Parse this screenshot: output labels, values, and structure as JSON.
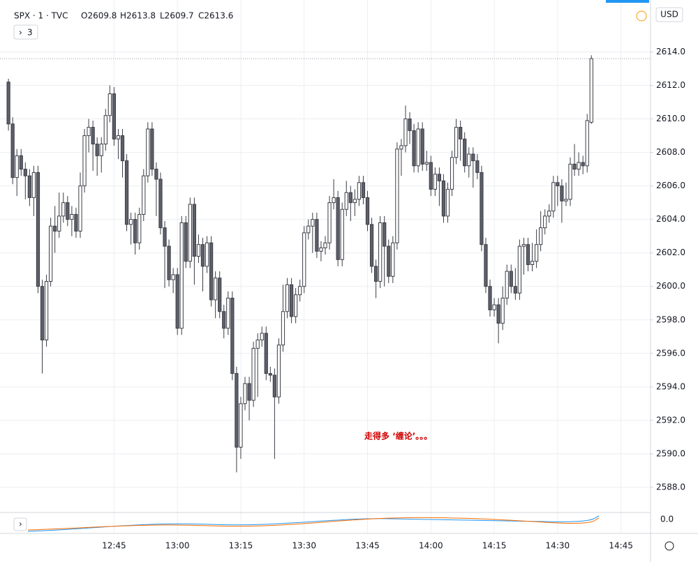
{
  "chart_data": {
    "type": "candlestick",
    "header": {
      "symbol": "SPX · 1 · TVC",
      "open": "O2609.8",
      "high": "H2613.8",
      "low": "L2609.7",
      "close": "C2613.6"
    },
    "indicator_count": "3",
    "currency": "USD",
    "annotation": "走得多 ‘缠论’。。。",
    "indicator_zero": "0.0",
    "x": [
      "12:20",
      "12:21",
      "12:22",
      "12:23",
      "12:24",
      "12:25",
      "12:26",
      "12:27",
      "12:28",
      "12:29",
      "12:30",
      "12:31",
      "12:32",
      "12:33",
      "12:34",
      "12:35",
      "12:36",
      "12:37",
      "12:38",
      "12:39",
      "12:40",
      "12:41",
      "12:42",
      "12:43",
      "12:44",
      "12:45",
      "12:46",
      "12:47",
      "12:48",
      "12:49",
      "12:50",
      "12:51",
      "12:52",
      "12:53",
      "12:54",
      "12:55",
      "12:56",
      "12:57",
      "12:58",
      "12:59",
      "13:00",
      "13:01",
      "13:02",
      "13:03",
      "13:04",
      "13:05",
      "13:06",
      "13:07",
      "13:08",
      "13:09",
      "13:10",
      "13:11",
      "13:12",
      "13:13",
      "13:14",
      "13:15",
      "13:16",
      "13:17",
      "13:18",
      "13:19",
      "13:20",
      "13:21",
      "13:22",
      "13:23",
      "13:24",
      "13:25",
      "13:26",
      "13:27",
      "13:28",
      "13:29",
      "13:30",
      "13:31",
      "13:32",
      "13:33",
      "13:34",
      "13:35",
      "13:36",
      "13:37",
      "13:38",
      "13:39",
      "13:40",
      "13:41",
      "13:42",
      "13:43",
      "13:44",
      "13:45",
      "13:46",
      "13:47",
      "13:48",
      "13:49",
      "13:50",
      "13:51",
      "13:52",
      "13:53",
      "13:54",
      "13:55",
      "13:56",
      "13:57",
      "13:58",
      "13:59",
      "14:00",
      "14:01",
      "14:02",
      "14:03",
      "14:04",
      "14:05",
      "14:06",
      "14:07",
      "14:08",
      "14:09",
      "14:10",
      "14:11",
      "14:12",
      "14:13",
      "14:14",
      "14:15",
      "14:16",
      "14:17",
      "14:18",
      "14:19",
      "14:20",
      "14:21",
      "14:22",
      "14:23",
      "14:24",
      "14:25",
      "14:26",
      "14:27",
      "14:28",
      "14:29",
      "14:30",
      "14:31",
      "14:32",
      "14:33",
      "14:34",
      "14:35",
      "14:36",
      "14:37",
      "14:38"
    ],
    "open": [
      2612.2,
      2609.7,
      2606.5,
      2607.8,
      2607.0,
      2606.6,
      2605.3,
      2606.8,
      2600.0,
      2596.8,
      2600.3,
      2603.6,
      2603.3,
      2604.2,
      2605.0,
      2604.0,
      2604.3,
      2603.3,
      2606.0,
      2609.0,
      2609.5,
      2608.5,
      2607.8,
      2608.5,
      2610.2,
      2611.5,
      2608.8,
      2609.0,
      2607.5,
      2603.7,
      2604.0,
      2602.6,
      2604.3,
      2606.6,
      2609.4,
      2607.0,
      2606.4,
      2603.5,
      2602.4,
      2600.4,
      2600.7,
      2597.5,
      2603.8,
      2601.5,
      2604.9,
      2601.8,
      2602.5,
      2601.2,
      2602.6,
      2599.2,
      2600.5,
      2598.5,
      2597.5,
      2599.3,
      2594.8,
      2590.4,
      2593.0,
      2594.2,
      2593.2,
      2596.3,
      2596.8,
      2597.2,
      2594.8,
      2594.7,
      2593.4,
      2596.5,
      2598.5,
      2600.1,
      2598.2,
      2599.5,
      2600.0,
      2603.2,
      2603.6,
      2604.0,
      2602.1,
      2602.3,
      2602.6,
      2605.0,
      2605.3,
      2601.6,
      2604.6,
      2605.6,
      2605.0,
      2605.2,
      2606.2,
      2605.3,
      2603.7,
      2601.2,
      2600.3,
      2603.8,
      2602.4,
      2600.6,
      2602.6,
      2608.2,
      2608.4,
      2610.0,
      2609.3,
      2607.2,
      2609.4,
      2607.3,
      2607.4,
      2605.8,
      2606.7,
      2606.3,
      2604.2,
      2605.8,
      2607.7,
      2609.5,
      2608.8,
      2607.2,
      2607.9,
      2607.5,
      2606.8,
      2602.5,
      2600.0,
      2598.6,
      2598.9,
      2597.8,
      2599.3,
      2600.9,
      2600.0,
      2599.6,
      2602.4,
      2602.5,
      2601.3,
      2601.5,
      2602.5,
      2603.5,
      2604.2,
      2604.5,
      2606.2,
      2606.0,
      2605.1,
      2605.2,
      2607.3,
      2607.0,
      2607.4,
      2607.2,
      2609.8
    ],
    "high": [
      2612.4,
      2610.1,
      2608.2,
      2608.2,
      2607.4,
      2607.0,
      2607.2,
      2607.2,
      2600.4,
      2600.7,
      2604.1,
      2604.8,
      2605.6,
      2605.6,
      2605.4,
      2604.8,
      2604.7,
      2606.8,
      2609.4,
      2610.0,
      2609.9,
      2608.9,
      2608.9,
      2610.6,
      2612.0,
      2611.9,
      2609.4,
      2609.4,
      2607.9,
      2604.4,
      2604.4,
      2604.7,
      2607.0,
      2609.8,
      2609.8,
      2607.4,
      2606.8,
      2603.9,
      2602.8,
      2601.1,
      2601.1,
      2604.2,
      2604.2,
      2605.3,
      2605.3,
      2603.1,
      2602.9,
      2603.0,
      2603.0,
      2600.9,
      2600.9,
      2598.9,
      2599.7,
      2599.7,
      2595.2,
      2593.4,
      2594.6,
      2594.6,
      2596.7,
      2597.2,
      2597.6,
      2597.6,
      2595.2,
      2595.1,
      2596.9,
      2600.1,
      2600.5,
      2600.5,
      2599.9,
      2600.4,
      2603.6,
      2604.0,
      2604.4,
      2604.4,
      2602.7,
      2603.0,
      2605.4,
      2606.4,
      2605.7,
      2605.0,
      2606.3,
      2606.0,
      2605.8,
      2606.6,
      2606.6,
      2605.7,
      2604.1,
      2601.6,
      2604.2,
      2604.2,
      2602.8,
      2603.0,
      2608.6,
      2608.8,
      2610.8,
      2610.4,
      2609.7,
      2609.8,
      2609.8,
      2608.1,
      2607.8,
      2607.1,
      2607.1,
      2606.7,
      2606.2,
      2608.1,
      2610.0,
      2609.9,
      2609.2,
      2608.3,
      2608.3,
      2607.9,
      2607.2,
      2602.9,
      2600.4,
      2599.3,
      2599.3,
      2600.0,
      2601.3,
      2601.3,
      2601.1,
      2602.8,
      2602.9,
      2602.9,
      2602.6,
      2603.4,
      2604.5,
      2604.6,
      2604.9,
      2606.6,
      2606.6,
      2606.4,
      2606.2,
      2607.7,
      2608.5,
      2608.0,
      2607.8,
      2610.3,
      2613.8
    ],
    "low": [
      2609.3,
      2606.1,
      2605.4,
      2606.6,
      2605.2,
      2604.8,
      2604.2,
      2599.6,
      2594.8,
      2596.4,
      2600.0,
      2602.0,
      2602.9,
      2603.8,
      2603.6,
      2603.0,
      2602.9,
      2602.9,
      2605.6,
      2608.0,
      2606.9,
      2606.6,
      2606.8,
      2608.1,
      2609.8,
      2608.4,
      2607.6,
      2606.5,
      2603.3,
      2602.5,
      2601.9,
      2602.2,
      2603.9,
      2606.2,
      2606.6,
      2604.2,
      2603.1,
      2599.9,
      2600.0,
      2599.6,
      2597.1,
      2597.1,
      2601.1,
      2601.1,
      2600.1,
      2601.4,
      2599.7,
      2600.8,
      2598.8,
      2598.1,
      2598.1,
      2596.9,
      2597.1,
      2594.4,
      2588.9,
      2589.7,
      2592.6,
      2592.0,
      2592.8,
      2593.4,
      2596.4,
      2594.4,
      2594.3,
      2589.7,
      2593.0,
      2596.1,
      2598.1,
      2597.8,
      2597.8,
      2599.1,
      2599.6,
      2602.8,
      2602.0,
      2601.7,
      2601.5,
      2601.9,
      2602.2,
      2604.6,
      2601.2,
      2601.2,
      2604.2,
      2603.9,
      2604.2,
      2604.8,
      2604.9,
      2603.3,
      2600.8,
      2599.3,
      2599.9,
      2600.0,
      2600.2,
      2600.2,
      2602.2,
      2606.6,
      2608.0,
      2608.5,
      2606.8,
      2606.8,
      2606.9,
      2606.9,
      2605.4,
      2605.4,
      2604.8,
      2603.8,
      2603.8,
      2605.4,
      2607.3,
      2607.5,
      2606.8,
      2606.5,
      2605.9,
      2606.4,
      2602.1,
      2599.6,
      2598.2,
      2598.2,
      2596.6,
      2597.4,
      2598.9,
      2599.6,
      2599.2,
      2599.2,
      2600.7,
      2600.9,
      2600.9,
      2601.1,
      2602.1,
      2603.1,
      2603.8,
      2604.1,
      2604.8,
      2603.8,
      2604.8,
      2604.8,
      2606.6,
      2606.6,
      2606.7,
      2606.8,
      2609.7
    ],
    "close": [
      2609.7,
      2606.5,
      2607.8,
      2607.0,
      2606.6,
      2605.3,
      2606.8,
      2600.0,
      2596.8,
      2600.3,
      2603.6,
      2603.3,
      2604.2,
      2605.0,
      2604.0,
      2604.3,
      2603.3,
      2606.0,
      2609.0,
      2609.5,
      2608.5,
      2607.8,
      2608.5,
      2610.2,
      2611.5,
      2608.8,
      2609.0,
      2607.5,
      2603.7,
      2604.0,
      2602.6,
      2604.3,
      2606.6,
      2609.4,
      2607.0,
      2606.4,
      2603.5,
      2602.4,
      2600.4,
      2600.7,
      2597.5,
      2603.8,
      2601.5,
      2604.9,
      2601.8,
      2602.5,
      2601.2,
      2602.6,
      2599.2,
      2600.5,
      2598.5,
      2597.5,
      2599.3,
      2594.8,
      2590.4,
      2593.0,
      2594.2,
      2593.2,
      2596.3,
      2596.8,
      2597.2,
      2594.8,
      2594.7,
      2593.4,
      2596.5,
      2598.5,
      2600.1,
      2598.2,
      2599.5,
      2600.0,
      2603.2,
      2603.6,
      2604.0,
      2602.1,
      2602.3,
      2602.6,
      2605.0,
      2605.3,
      2601.6,
      2604.6,
      2605.6,
      2605.0,
      2605.2,
      2606.2,
      2605.3,
      2603.7,
      2601.2,
      2600.3,
      2603.8,
      2602.4,
      2600.6,
      2602.6,
      2608.2,
      2608.4,
      2610.0,
      2609.3,
      2607.2,
      2609.4,
      2607.3,
      2607.4,
      2605.8,
      2606.7,
      2606.3,
      2604.2,
      2605.8,
      2607.7,
      2609.5,
      2608.8,
      2607.2,
      2607.9,
      2607.5,
      2606.8,
      2602.5,
      2600.0,
      2598.6,
      2598.9,
      2597.8,
      2599.3,
      2600.9,
      2600.0,
      2599.6,
      2602.4,
      2602.5,
      2601.3,
      2601.5,
      2602.5,
      2603.5,
      2604.2,
      2604.5,
      2606.2,
      2606.0,
      2605.1,
      2605.2,
      2607.3,
      2607.0,
      2607.4,
      2607.2,
      2609.9,
      2613.6
    ],
    "up_color": "#ffffff",
    "down_color": "#5d606b",
    "outline_color": "#3b3d45",
    "xlim": [
      "12:18",
      "14:52"
    ],
    "xticks": [
      "12:45",
      "13:00",
      "13:15",
      "13:30",
      "13:45",
      "14:00",
      "14:15",
      "14:30",
      "14:45"
    ],
    "ylim": [
      2586.5,
      2617.1
    ],
    "yticks": [
      {
        "value": 2588,
        "label": "2588.0"
      },
      {
        "value": 2590,
        "label": "2590.0"
      },
      {
        "value": 2592,
        "label": "2592.0"
      },
      {
        "value": 2594,
        "label": "2594.0"
      },
      {
        "value": 2596,
        "label": "2596.0"
      },
      {
        "value": 2598,
        "label": "2598.0"
      },
      {
        "value": 2600,
        "label": "2600.0"
      },
      {
        "value": 2602,
        "label": "2602.0"
      },
      {
        "value": 2604,
        "label": "2604.0"
      },
      {
        "value": 2606,
        "label": "2606.0"
      },
      {
        "value": 2608,
        "label": "2608.0"
      },
      {
        "value": 2610,
        "label": "2610.0"
      },
      {
        "value": 2612,
        "label": "2612.0"
      },
      {
        "value": 2614,
        "label": "2614.0"
      }
    ],
    "grid": true
  }
}
